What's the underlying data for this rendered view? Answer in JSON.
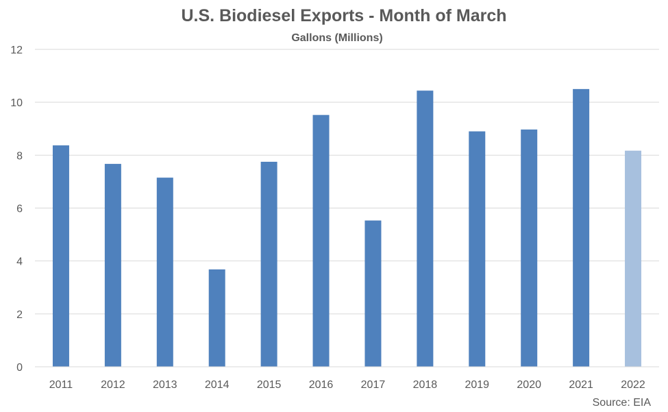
{
  "chart_data": {
    "type": "bar",
    "title": "U.S. Biodiesel Exports - Month of March",
    "subtitle": "Gallons (Millions)",
    "xlabel": "",
    "ylabel": "",
    "ylim": [
      0,
      12
    ],
    "yticks": [
      0,
      2,
      4,
      6,
      8,
      10,
      12
    ],
    "categories": [
      "2011",
      "2012",
      "2013",
      "2014",
      "2015",
      "2016",
      "2017",
      "2018",
      "2019",
      "2020",
      "2021",
      "2022"
    ],
    "values": [
      8.37,
      7.67,
      7.15,
      3.68,
      7.75,
      9.52,
      5.53,
      10.44,
      8.9,
      8.97,
      10.5,
      8.17
    ],
    "bar_colors": [
      "#4f81bd",
      "#4f81bd",
      "#4f81bd",
      "#4f81bd",
      "#4f81bd",
      "#4f81bd",
      "#4f81bd",
      "#4f81bd",
      "#4f81bd",
      "#4f81bd",
      "#4f81bd",
      "#a7c0de"
    ],
    "grid": true,
    "legend": "none",
    "source": "Source: EIA"
  }
}
